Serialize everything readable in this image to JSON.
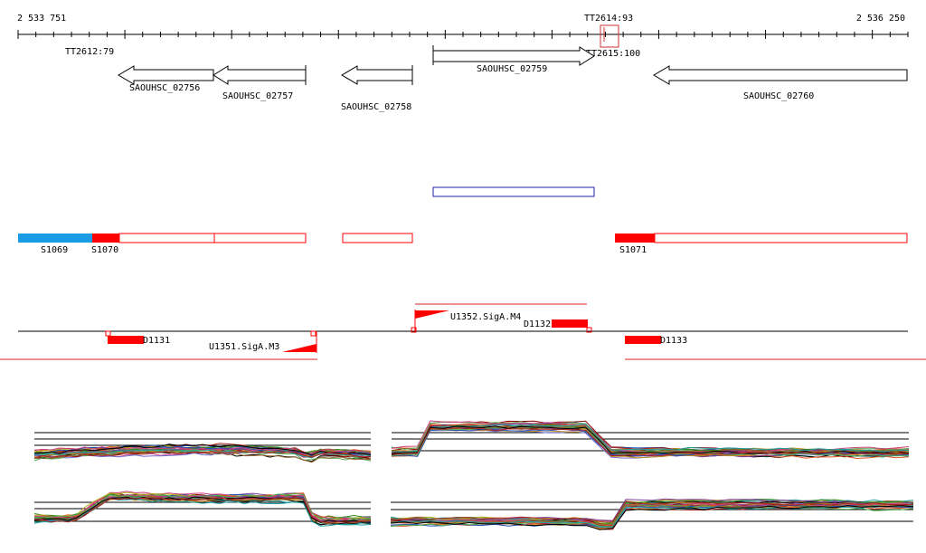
{
  "ruler": {
    "start": "2 533 751",
    "end": "2 536 250"
  },
  "terminators": [
    {
      "id": "tt2612",
      "label": "TT2612:79"
    },
    {
      "id": "tt2614",
      "label": "TT2614:93"
    },
    {
      "id": "tt2615",
      "label": "TT2615:100"
    }
  ],
  "genes": [
    {
      "id": "g02756",
      "label": "SAOUHSC_02756",
      "strand": "-"
    },
    {
      "id": "g02757",
      "label": "SAOUHSC_02757",
      "strand": "-"
    },
    {
      "id": "g02758",
      "label": "SAOUHSC_02758",
      "strand": "-"
    },
    {
      "id": "g02759",
      "label": "SAOUHSC_02759",
      "strand": "+"
    },
    {
      "id": "g02760",
      "label": "SAOUHSC_02760",
      "strand": "-"
    }
  ],
  "segments": [
    {
      "id": "s1069",
      "label": "S1069"
    },
    {
      "id": "s1070",
      "label": "S1070"
    },
    {
      "id": "s1071",
      "label": "S1071"
    }
  ],
  "downshifts": [
    {
      "id": "d1131",
      "label": "D1131"
    },
    {
      "id": "d1132",
      "label": "D1132"
    },
    {
      "id": "d1133",
      "label": "D1133"
    }
  ],
  "upshifts": [
    {
      "id": "u1351",
      "label": "U1351.SigA.M3"
    },
    {
      "id": "u1352",
      "label": "U1352.SigA.M4"
    }
  ],
  "colors": {
    "segment_blue": "#1a9be6",
    "segment_red": "#ff0000",
    "orf_outline": "#2222aa",
    "profile_palette": [
      "#8b0000",
      "#e05020",
      "#2e8b22",
      "#7a3d9a",
      "#c08a20",
      "#2050b0",
      "#d04080",
      "#55aa55",
      "#996633",
      "#20a0a0",
      "#000000",
      "#aa2222",
      "#7070d0",
      "#b5b520"
    ]
  }
}
